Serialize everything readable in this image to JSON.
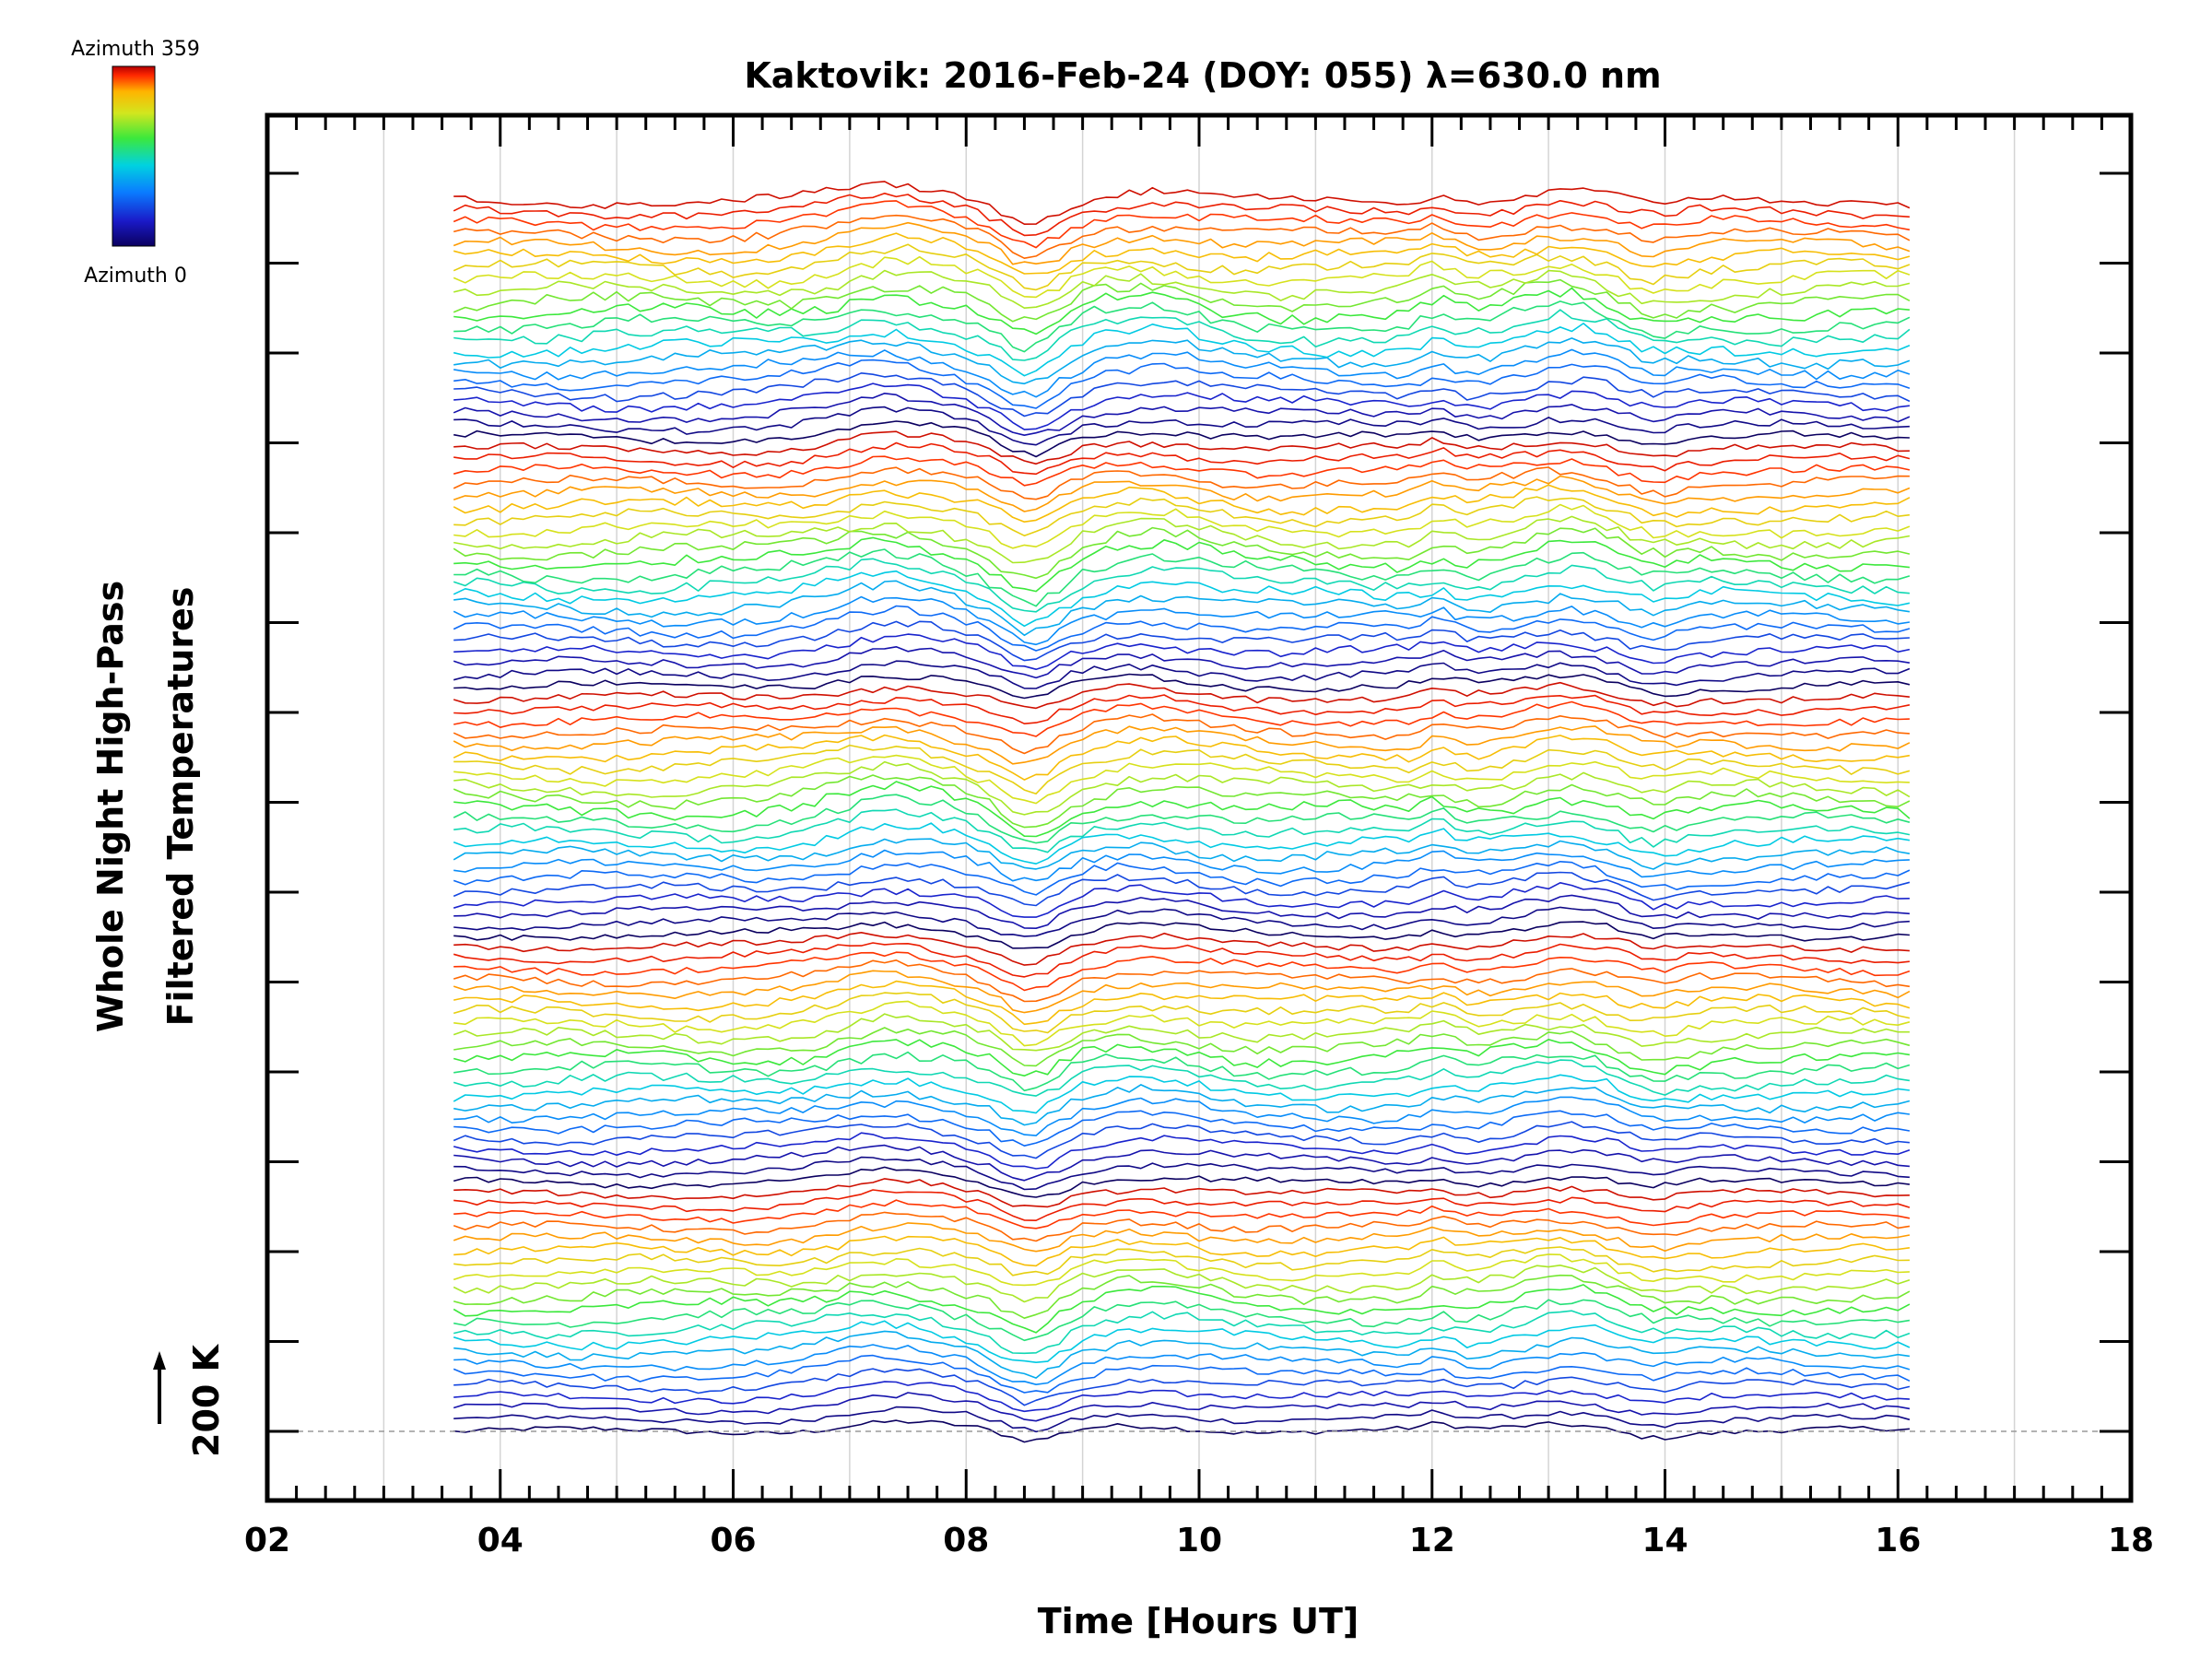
{
  "chart_data": {
    "type": "line",
    "title": "Kaktovik: 2016-Feb-24 (DOY: 055) λ=630.0 nm",
    "xlabel": "Time [Hours UT]",
    "ylabel_lines": [
      "Whole Night High-Pass",
      "Filtered Temperatures"
    ],
    "scale_label": "200 K",
    "xlim": [
      2,
      18
    ],
    "x_tick_labels": [
      "02",
      "04",
      "06",
      "08",
      "10",
      "12",
      "14",
      "16",
      "18"
    ],
    "data_time_range": [
      3.6,
      16.1
    ],
    "colorbar": {
      "min_label": "Azimuth 0",
      "max_label": "Azimuth 359"
    },
    "grid": "vertical lines every hour",
    "zones": 5,
    "traces_per_zone": 22,
    "colormap": [
      "#0b0060",
      "#1a1ac8",
      "#0a7cff",
      "#00d2e0",
      "#3ce83c",
      "#d2e61e",
      "#ffb400",
      "#ff2800",
      "#b40000"
    ]
  }
}
